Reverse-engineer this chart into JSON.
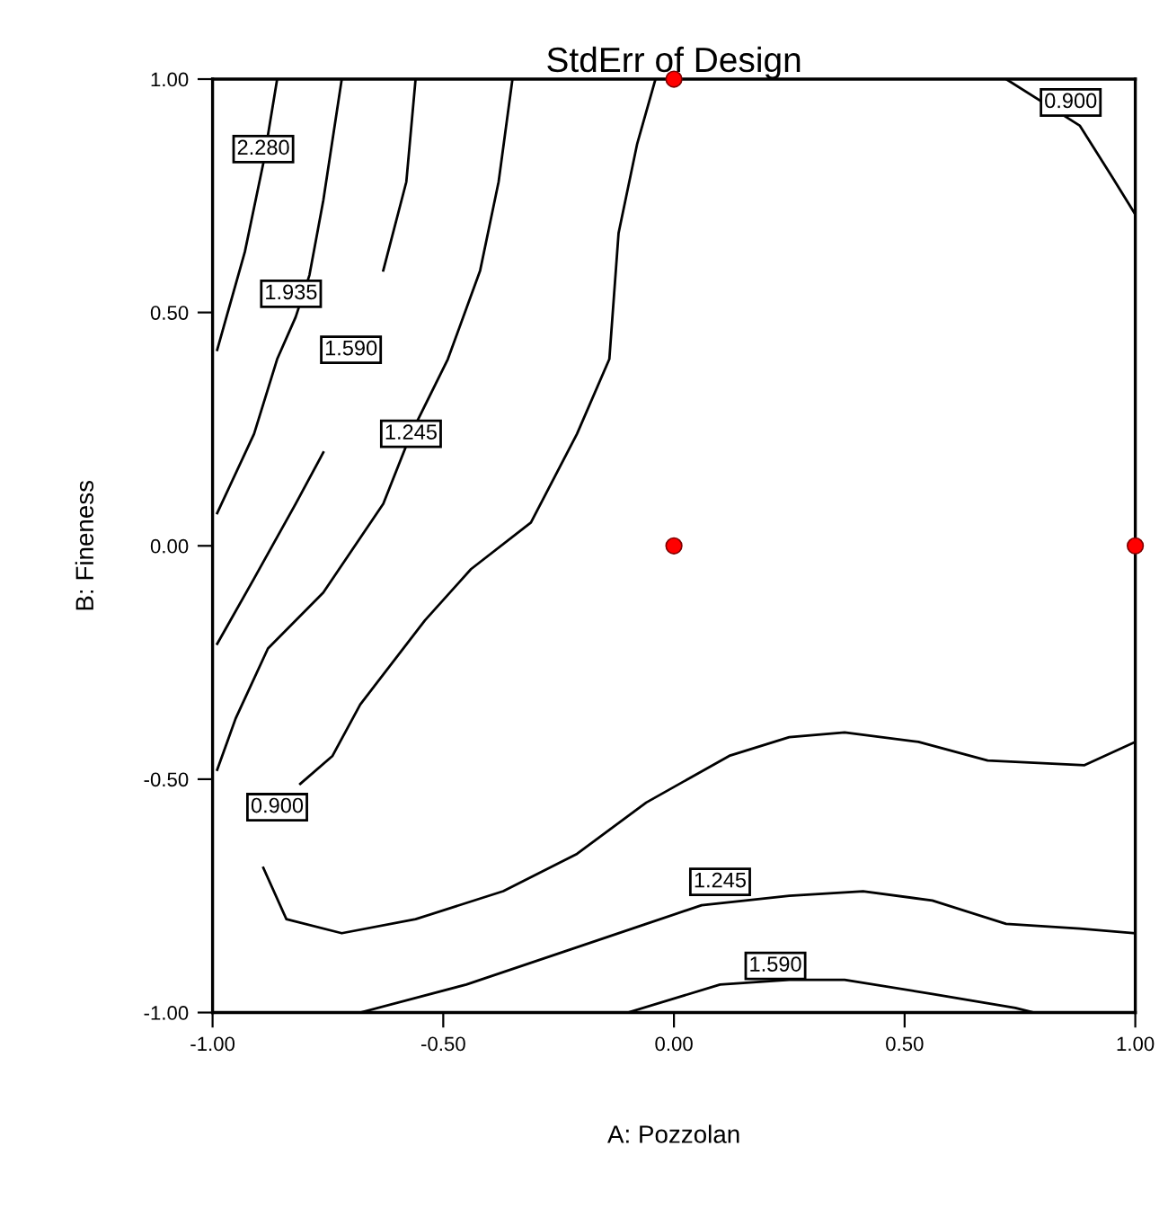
{
  "chart_data": {
    "type": "line",
    "title": "StdErr of Design",
    "xlabel": "A: Pozzolan",
    "ylabel": "B: Fineness",
    "xlim": [
      -1,
      1
    ],
    "ylim": [
      -1,
      1
    ],
    "xticks": [
      {
        "value": -1,
        "label": "-1.00"
      },
      {
        "value": -0.5,
        "label": "-0.50"
      },
      {
        "value": 0,
        "label": "0.00"
      },
      {
        "value": 0.5,
        "label": "0.50"
      },
      {
        "value": 1,
        "label": "1.00"
      }
    ],
    "yticks": [
      {
        "value": -1,
        "label": "-1.00"
      },
      {
        "value": -0.5,
        "label": "-0.50"
      },
      {
        "value": 0,
        "label": "0.00"
      },
      {
        "value": 0.5,
        "label": "0.50"
      },
      {
        "value": 1,
        "label": "1.00"
      }
    ],
    "grid": false,
    "legend": false,
    "marker": "none",
    "line_style": "solid",
    "series": [
      {
        "color": "#000000",
        "x": [
          -0.86,
          -0.89,
          -0.93,
          -0.99
        ],
        "values": [
          1.0,
          0.82,
          0.63,
          0.42
        ]
      },
      {
        "color": "#000000",
        "x": [
          -0.72,
          -0.76,
          -0.79,
          -0.82,
          -0.86,
          -0.91,
          -0.99
        ],
        "values": [
          1.0,
          0.74,
          0.58,
          0.49,
          0.4,
          0.24,
          0.07
        ]
      },
      {
        "color": "#000000",
        "x": [
          -0.56,
          -0.58,
          -0.63,
          -0.68,
          -0.76,
          -0.82,
          -0.91,
          -0.99
        ],
        "values": [
          1.0,
          0.78,
          0.59,
          null,
          0.2,
          0.09,
          -0.07,
          -0.21
        ]
      },
      {
        "color": "#000000",
        "x": [
          -0.35,
          -0.38,
          -0.42,
          -0.49,
          -0.57,
          -0.63,
          -0.76,
          -0.88,
          -0.95,
          -0.99
        ],
        "values": [
          1.0,
          0.78,
          0.59,
          0.4,
          0.24,
          0.09,
          -0.1,
          -0.22,
          -0.37,
          -0.48
        ]
      },
      {
        "color": "#000000",
        "x": [
          -0.04,
          -0.08,
          -0.12,
          -0.14,
          -0.21,
          -0.31,
          -0.44,
          -0.54,
          -0.68,
          -0.74,
          -0.81,
          -0.86,
          -0.89,
          -0.84,
          -0.72,
          -0.56,
          -0.37,
          -0.21,
          -0.06,
          0.12,
          0.25,
          0.37,
          0.53,
          0.68,
          0.89,
          1.0
        ],
        "values": [
          1.0,
          0.86,
          0.67,
          0.4,
          0.24,
          0.05,
          -0.05,
          -0.16,
          -0.34,
          -0.45,
          -0.51,
          null,
          -0.69,
          -0.8,
          -0.83,
          -0.8,
          -0.74,
          -0.66,
          -0.55,
          -0.45,
          -0.41,
          -0.4,
          -0.42,
          -0.46,
          -0.47,
          -0.42
        ]
      },
      {
        "color": "#000000",
        "x": [
          0.72,
          0.88,
          0.95,
          1.0
        ],
        "values": [
          1.0,
          0.9,
          0.79,
          0.71
        ]
      },
      {
        "color": "#000000",
        "x": [
          -0.68,
          -0.45,
          -0.21,
          -0.06,
          0.06,
          0.25,
          0.41,
          0.56,
          0.72,
          0.88,
          1.0
        ],
        "values": [
          -1.0,
          -0.94,
          -0.86,
          -0.81,
          -0.77,
          -0.75,
          -0.74,
          -0.76,
          -0.81,
          -0.82,
          -0.83
        ]
      },
      {
        "color": "#000000",
        "x": [
          -0.1,
          0.1,
          0.25,
          0.37,
          0.56,
          0.74,
          0.78
        ],
        "values": [
          -1.0,
          -0.94,
          -0.93,
          -0.93,
          -0.96,
          -0.99,
          -1.0
        ]
      },
      {
        "type": "scatter",
        "marker": "circle",
        "color": "#ff0000",
        "x": [
          0,
          0,
          1
        ],
        "values": [
          1,
          0,
          0
        ]
      }
    ],
    "annotations": [
      {
        "text": "2.280",
        "x": -0.89,
        "y": 0.85
      },
      {
        "text": "1.935",
        "x": -0.83,
        "y": 0.54
      },
      {
        "text": "1.590",
        "x": -0.7,
        "y": 0.42
      },
      {
        "text": "1.245",
        "x": -0.57,
        "y": 0.24
      },
      {
        "text": "0.900",
        "x": -0.86,
        "y": -0.56
      },
      {
        "text": "0.900",
        "x": 0.86,
        "y": 0.95
      },
      {
        "text": "1.245",
        "x": 0.1,
        "y": -0.72
      },
      {
        "text": "1.590",
        "x": 0.22,
        "y": -0.9
      }
    ]
  }
}
